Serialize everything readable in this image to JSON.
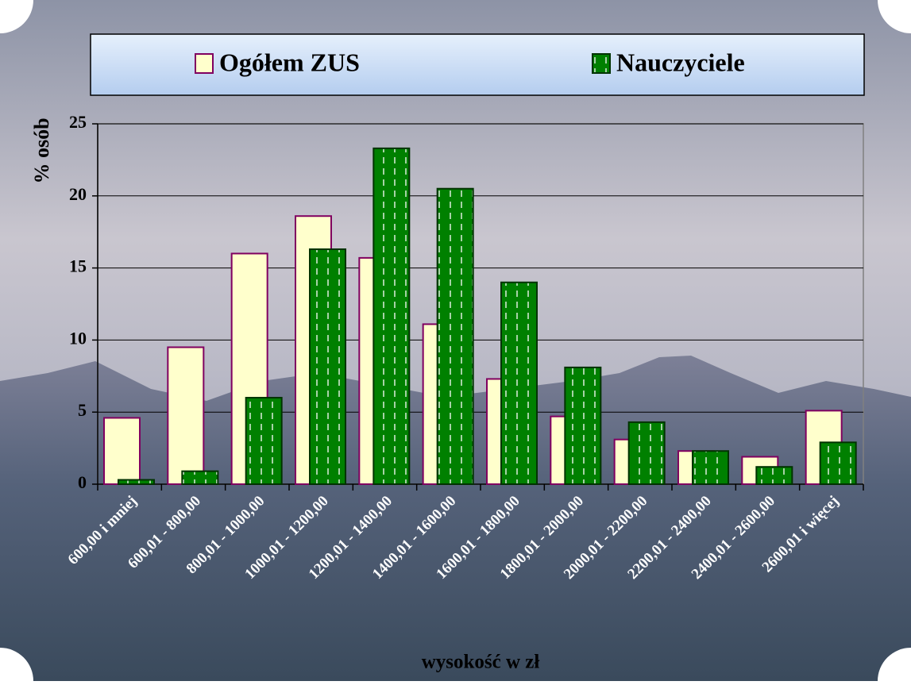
{
  "chart_data": {
    "type": "bar",
    "y_label": "% osób",
    "x_label": "wysokość w zł",
    "categories": [
      "600,00 i mniej",
      "600,01 - 800,00",
      "800,01 - 1000,00",
      "1000,01 - 1200,00",
      "1200,01 - 1400,00",
      "1400,01 - 1600,00",
      "1600,01 - 1800,00",
      "1800,01 - 2000,00",
      "2000,01 - 2200,00",
      "2200,01 - 2400,00",
      "2400,01 - 2600,00",
      "2600,01 i więcej"
    ],
    "series": [
      {
        "name": "Ogółem ZUS",
        "color": "#ffffcc",
        "values": [
          4.6,
          9.5,
          16.0,
          18.6,
          15.7,
          11.1,
          7.3,
          4.7,
          3.1,
          2.3,
          1.9,
          5.1
        ]
      },
      {
        "name": "Nauczyciele",
        "color": "#008000",
        "values": [
          0.3,
          0.9,
          6.0,
          16.3,
          23.3,
          20.5,
          14.0,
          8.1,
          4.3,
          2.3,
          1.2,
          2.9
        ]
      }
    ],
    "ylim": [
      0,
      25
    ],
    "yticks": [
      0,
      5,
      10,
      15,
      20,
      25
    ],
    "grid": true,
    "legend": "top"
  }
}
